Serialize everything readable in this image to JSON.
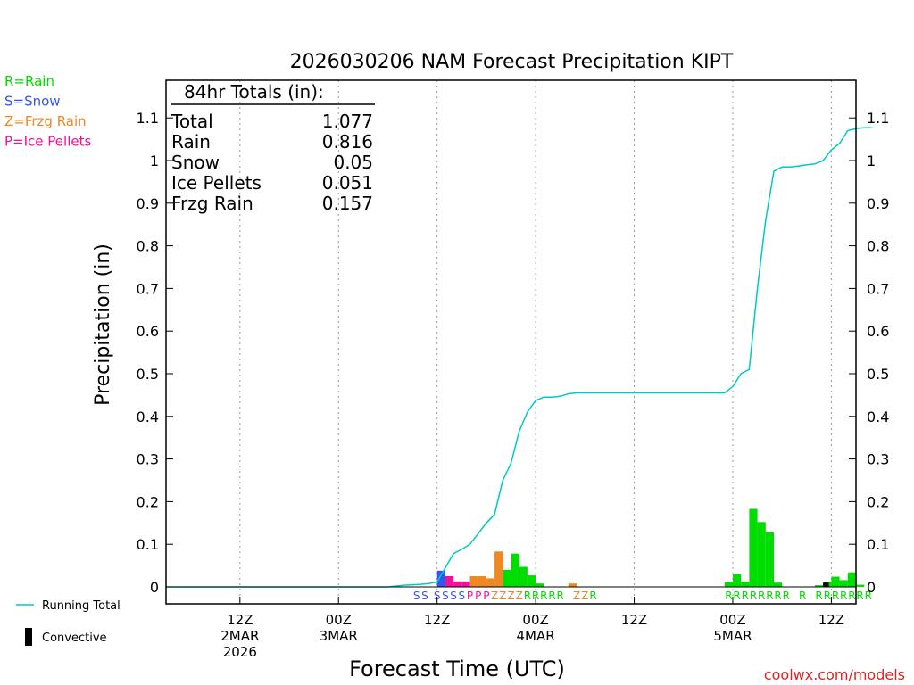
{
  "chart_data": {
    "type": "bar",
    "title": "2026030206 NAM Forecast Precipitation KIPT",
    "xlabel": "Forecast Time (UTC)",
    "ylabel": "Precipitation  (in)",
    "ylim": [
      0,
      1.18
    ],
    "y_ticks": [
      "0",
      "0.1",
      "0.2",
      "0.3",
      "0.4",
      "0.5",
      "0.6",
      "0.7",
      "0.8",
      "0.9",
      "1",
      "1.1"
    ],
    "y_tick_values": [
      0,
      0.1,
      0.2,
      0.3,
      0.4,
      0.5,
      0.6,
      0.7,
      0.8,
      0.9,
      1.0,
      1.1
    ],
    "x_range_hours": [
      -3,
      81
    ],
    "x_ticks": [
      {
        "hour": 6,
        "lines": [
          "12Z",
          "2MAR",
          "2026"
        ]
      },
      {
        "hour": 18,
        "lines": [
          "00Z",
          "3MAR"
        ]
      },
      {
        "hour": 30,
        "lines": [
          "12Z"
        ]
      },
      {
        "hour": 42,
        "lines": [
          "00Z",
          "4MAR"
        ]
      },
      {
        "hour": 54,
        "lines": [
          "12Z"
        ]
      },
      {
        "hour": 66,
        "lines": [
          "00Z",
          "5MAR"
        ]
      },
      {
        "hour": 78,
        "lines": [
          "12Z"
        ]
      }
    ],
    "legend": {
      "types": [
        {
          "code": "R",
          "label": "R=Rain",
          "color": "#00dd00"
        },
        {
          "code": "S",
          "label": "S=Snow",
          "color": "#3355ee"
        },
        {
          "code": "Z",
          "label": "Z=Frzg Rain",
          "color": "#ee8822"
        },
        {
          "code": "P",
          "label": "P=Ice Pellets",
          "color": "#ee1199"
        }
      ],
      "running_total_label": "Running Total",
      "running_total_color": "#00c8c8",
      "convective_label": "Convective",
      "convective_color": "#000000"
    },
    "totals_box": {
      "header": "84hr Totals (in):",
      "rows": [
        {
          "label": "Total",
          "value": "1.077"
        },
        {
          "label": "Rain",
          "value": "0.816"
        },
        {
          "label": "Snow",
          "value": "0.05"
        },
        {
          "label": "Ice Pellets",
          "value": "0.051"
        },
        {
          "label": "Frzg Rain",
          "value": "0.157"
        }
      ]
    },
    "bars": [
      {
        "hour": 31.0,
        "value": 0.038,
        "type": "S"
      },
      {
        "hour": 32.0,
        "value": 0.025,
        "type": "P"
      },
      {
        "hour": 33.0,
        "value": 0.013,
        "type": "P"
      },
      {
        "hour": 34.0,
        "value": 0.013,
        "type": "P"
      },
      {
        "hour": 35.0,
        "value": 0.025,
        "type": "Z"
      },
      {
        "hour": 36.0,
        "value": 0.025,
        "type": "Z"
      },
      {
        "hour": 37.0,
        "value": 0.02,
        "type": "Z"
      },
      {
        "hour": 38.0,
        "value": 0.083,
        "type": "Z"
      },
      {
        "hour": 39.0,
        "value": 0.04,
        "type": "R"
      },
      {
        "hour": 40.0,
        "value": 0.078,
        "type": "R"
      },
      {
        "hour": 41.0,
        "value": 0.047,
        "type": "R"
      },
      {
        "hour": 42.0,
        "value": 0.027,
        "type": "R"
      },
      {
        "hour": 43.0,
        "value": 0.008,
        "type": "R"
      },
      {
        "hour": 47.0,
        "value": 0.008,
        "type": "Z"
      },
      {
        "hour": 66.0,
        "value": 0.012,
        "type": "R"
      },
      {
        "hour": 67.0,
        "value": 0.03,
        "type": "R"
      },
      {
        "hour": 68.0,
        "value": 0.012,
        "type": "R"
      },
      {
        "hour": 69.0,
        "value": 0.183,
        "type": "R"
      },
      {
        "hour": 70.0,
        "value": 0.152,
        "type": "R"
      },
      {
        "hour": 71.0,
        "value": 0.128,
        "type": "R"
      },
      {
        "hour": 72.0,
        "value": 0.01,
        "type": "R"
      },
      {
        "hour": 77.0,
        "value": 0.004,
        "type": "R"
      },
      {
        "hour": 78.0,
        "value": 0.012,
        "type": "R"
      },
      {
        "hour": 79.0,
        "value": 0.024,
        "type": "R"
      },
      {
        "hour": 80.0,
        "value": 0.016,
        "type": "R"
      },
      {
        "hour": 81.0,
        "value": 0.034,
        "type": "R"
      },
      {
        "hour": 82.0,
        "value": 0.005,
        "type": "R"
      }
    ],
    "convective_bars": [
      {
        "hour": 78.0,
        "value": 0.01
      }
    ],
    "running_total": {
      "hours": [
        -3,
        24,
        26,
        28,
        29,
        30,
        31,
        32,
        33,
        34,
        35,
        36,
        37,
        38,
        39,
        40,
        41,
        42,
        43,
        44,
        45,
        46,
        47,
        50,
        60,
        65,
        66,
        67,
        68,
        69,
        70,
        71,
        72,
        73,
        74,
        75,
        76,
        77,
        78,
        79,
        80,
        81,
        82,
        83
      ],
      "values": [
        0,
        0,
        0.004,
        0.006,
        0.008,
        0.012,
        0.045,
        0.078,
        0.088,
        0.1,
        0.125,
        0.15,
        0.17,
        0.25,
        0.29,
        0.365,
        0.41,
        0.437,
        0.445,
        0.445,
        0.447,
        0.453,
        0.455,
        0.455,
        0.455,
        0.455,
        0.47,
        0.5,
        0.51,
        0.7,
        0.86,
        0.975,
        0.985,
        0.985,
        0.987,
        0.99,
        0.992,
        1.0,
        1.025,
        1.04,
        1.07,
        1.075,
        1.077,
        1.077
      ]
    },
    "type_codes": [
      {
        "hour": 27.5,
        "code": "S"
      },
      {
        "hour": 28.5,
        "code": "S"
      },
      {
        "hour": 30.0,
        "code": "S"
      },
      {
        "hour": 31.0,
        "code": "S"
      },
      {
        "hour": 32.0,
        "code": "S"
      },
      {
        "hour": 33.0,
        "code": "S"
      },
      {
        "hour": 34.0,
        "code": "P"
      },
      {
        "hour": 35.0,
        "code": "P"
      },
      {
        "hour": 36.0,
        "code": "P"
      },
      {
        "hour": 37.0,
        "code": "Z"
      },
      {
        "hour": 38.0,
        "code": "Z"
      },
      {
        "hour": 39.0,
        "code": "Z"
      },
      {
        "hour": 40.0,
        "code": "Z"
      },
      {
        "hour": 41.0,
        "code": "R"
      },
      {
        "hour": 42.0,
        "code": "R"
      },
      {
        "hour": 43.0,
        "code": "R"
      },
      {
        "hour": 44.0,
        "code": "R"
      },
      {
        "hour": 45.0,
        "code": "R"
      },
      {
        "hour": 47.0,
        "code": "Z"
      },
      {
        "hour": 48.0,
        "code": "Z"
      },
      {
        "hour": 49.0,
        "code": "R"
      },
      {
        "hour": 65.5,
        "code": "R"
      },
      {
        "hour": 66.5,
        "code": "R"
      },
      {
        "hour": 67.5,
        "code": "R"
      },
      {
        "hour": 68.5,
        "code": "R"
      },
      {
        "hour": 69.5,
        "code": "R"
      },
      {
        "hour": 70.5,
        "code": "R"
      },
      {
        "hour": 71.5,
        "code": "R"
      },
      {
        "hour": 72.5,
        "code": "R"
      },
      {
        "hour": 74.5,
        "code": "R"
      },
      {
        "hour": 76.5,
        "code": "R"
      },
      {
        "hour": 77.5,
        "code": "R"
      },
      {
        "hour": 78.5,
        "code": "R"
      },
      {
        "hour": 79.5,
        "code": "R"
      },
      {
        "hour": 80.5,
        "code": "R"
      },
      {
        "hour": 81.5,
        "code": "R"
      },
      {
        "hour": 82.5,
        "code": "R"
      }
    ],
    "watermark": "coolwx.com/models"
  }
}
